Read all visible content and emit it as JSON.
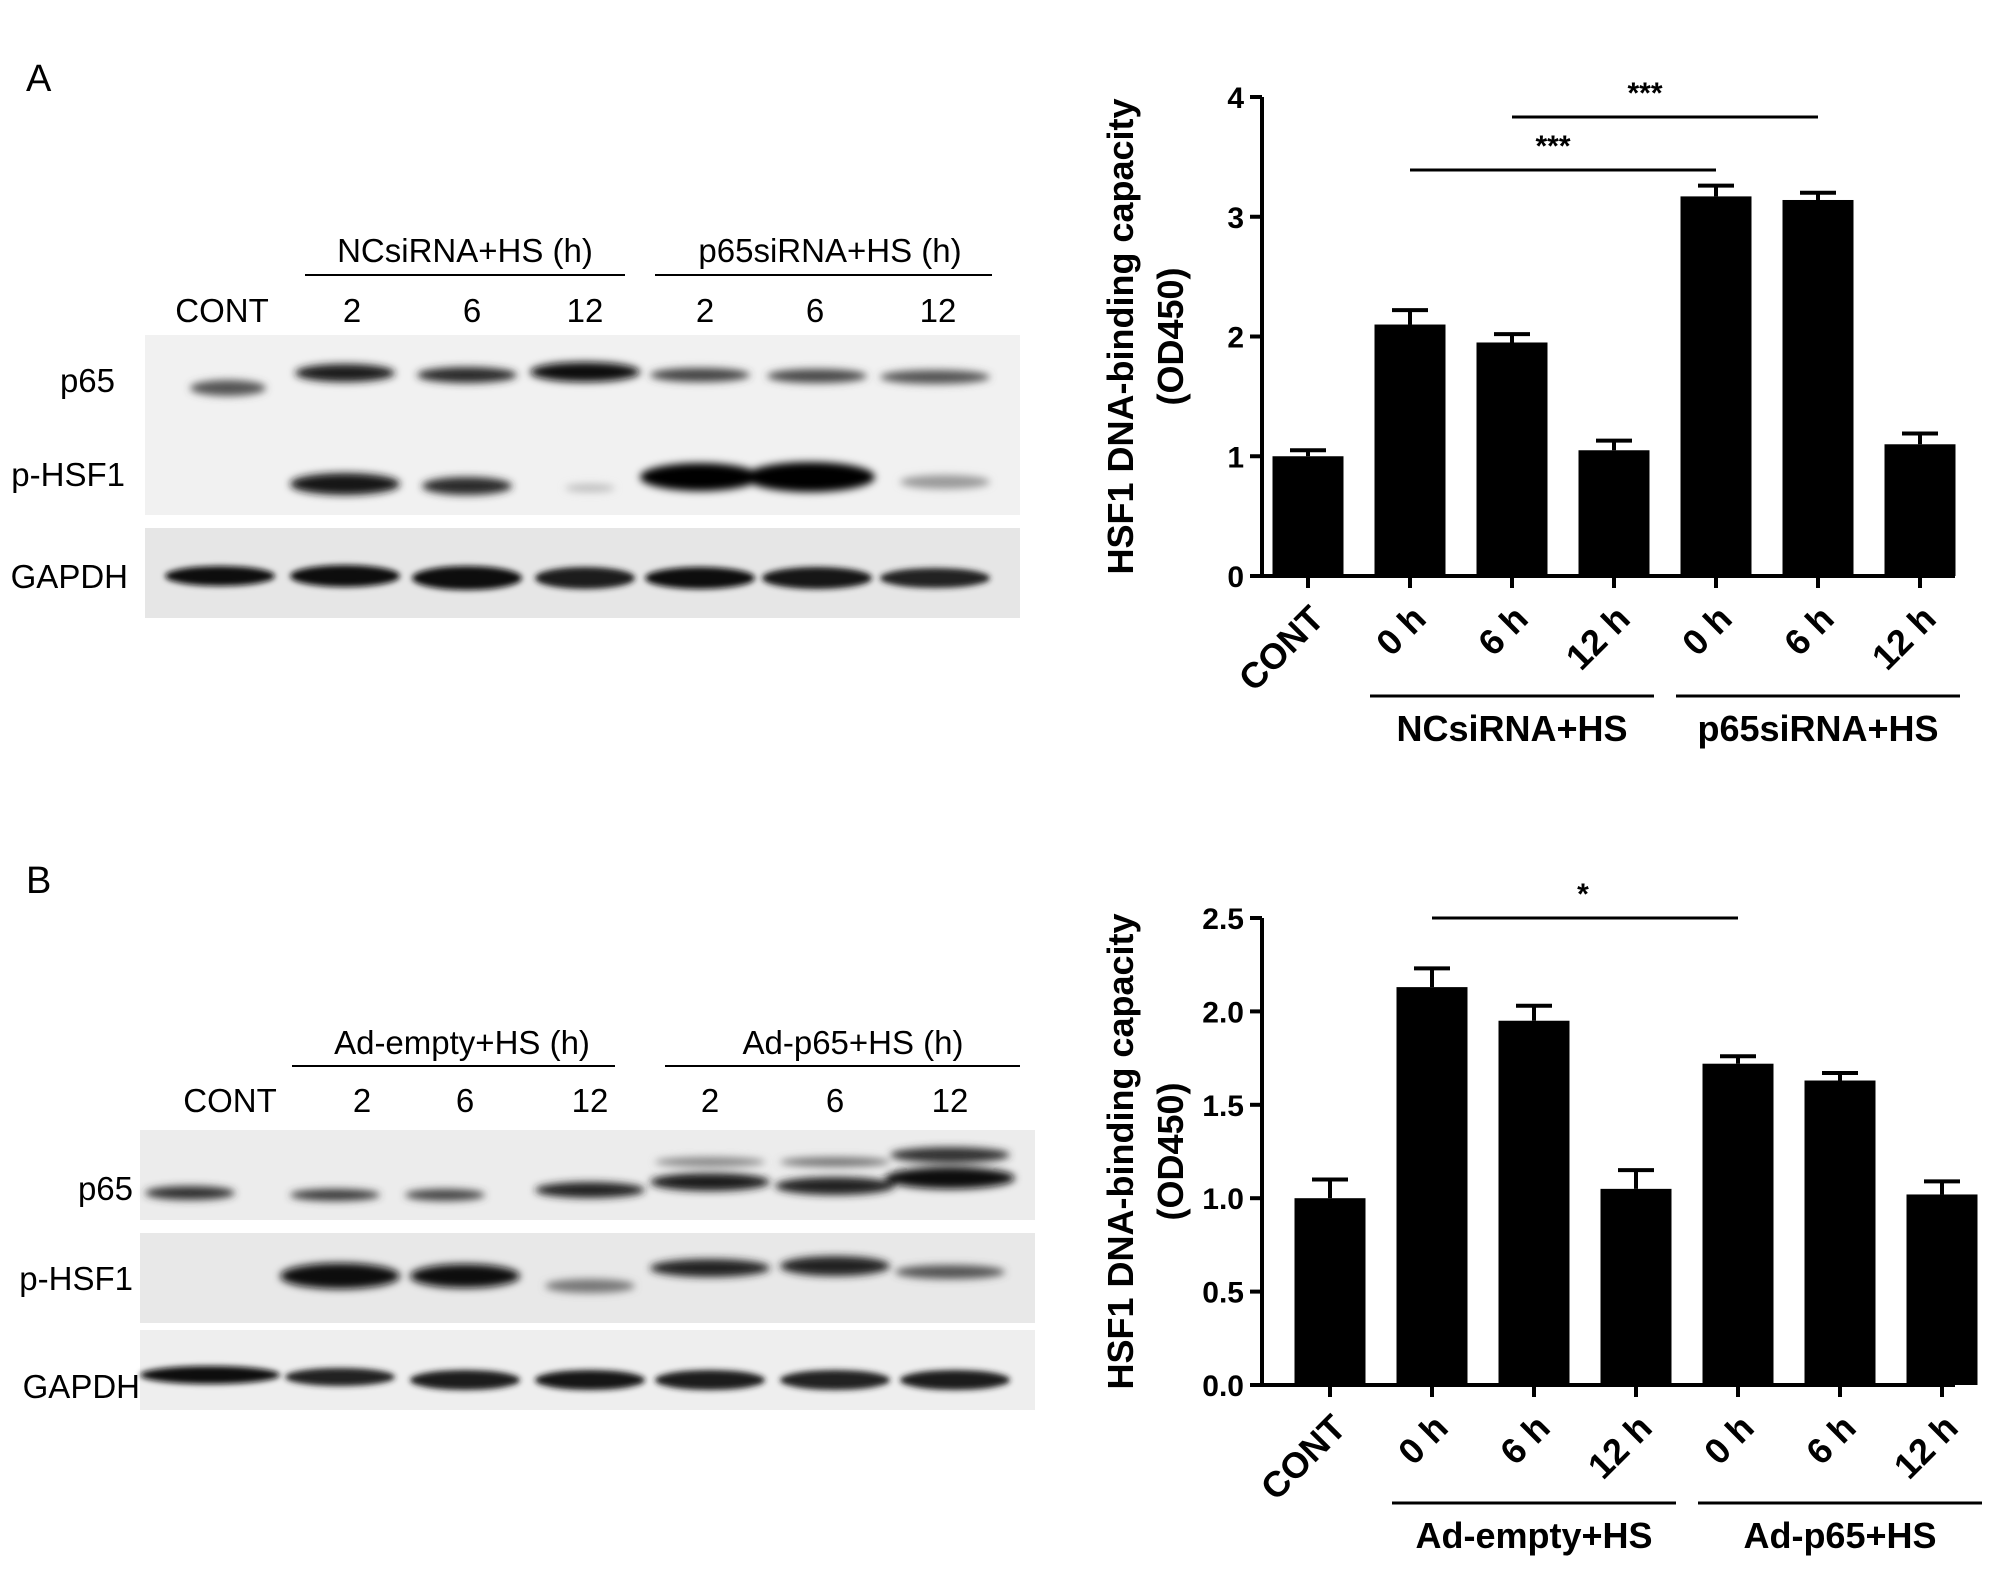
{
  "panels": {
    "A": {
      "letter": "A",
      "blot": {
        "group_headers": [
          "NCsiRNA+HS (h)",
          "p65siRNA+HS (h)"
        ],
        "lanes": [
          "CONT",
          "2",
          "6",
          "12",
          "2",
          "6",
          "12"
        ],
        "rows": [
          "p65",
          "p-HSF1",
          "GAPDH"
        ]
      }
    },
    "B": {
      "letter": "B",
      "blot": {
        "group_headers": [
          "Ad-empty+HS (h)",
          "Ad-p65+HS (h)"
        ],
        "lanes": [
          "CONT",
          "2",
          "6",
          "12",
          "2",
          "6",
          "12"
        ],
        "rows": [
          "p65",
          "p-HSF1",
          "GAPDH"
        ]
      }
    }
  },
  "chart_data": [
    {
      "type": "bar",
      "panel": "A",
      "categories": [
        "CONT",
        "0 h",
        "6 h",
        "12 h",
        "0 h",
        "6 h",
        "12 h"
      ],
      "values": [
        1.0,
        2.1,
        1.95,
        1.05,
        3.17,
        3.14,
        1.1
      ],
      "errors": [
        0.05,
        0.12,
        0.07,
        0.08,
        0.09,
        0.06,
        0.09
      ],
      "ylabel": "HSF1 DNA-binding capacity",
      "ylabel2": "(OD450)",
      "ylim": [
        0,
        4
      ],
      "yticks": [
        "0",
        "1",
        "2",
        "3",
        "4"
      ],
      "groups": [
        "NCsiRNA+HS",
        "p65siRNA+HS"
      ],
      "significance": [
        {
          "label": "***",
          "from": 1,
          "to": 4
        },
        {
          "label": "***",
          "from": 2,
          "to": 5
        }
      ],
      "bar_color": "#000000",
      "grid": false
    },
    {
      "type": "bar",
      "panel": "B",
      "categories": [
        "CONT",
        "0 h",
        "6 h",
        "12 h",
        "0 h",
        "6 h",
        "12 h"
      ],
      "values": [
        1.0,
        2.13,
        1.95,
        1.05,
        1.72,
        1.63,
        1.02
      ],
      "errors": [
        0.1,
        0.1,
        0.08,
        0.1,
        0.04,
        0.04,
        0.07
      ],
      "ylabel": "HSF1 DNA-binding capacity",
      "ylabel2": "(OD450)",
      "ylim": [
        0,
        2.5
      ],
      "yticks": [
        "0.0",
        "0.5",
        "1.0",
        "1.5",
        "2.0",
        "2.5"
      ],
      "groups": [
        "Ad-empty+HS",
        "Ad-p65+HS"
      ],
      "significance": [
        {
          "label": "*",
          "from": 1,
          "to": 4
        }
      ],
      "bar_color": "#000000",
      "grid": false
    }
  ]
}
